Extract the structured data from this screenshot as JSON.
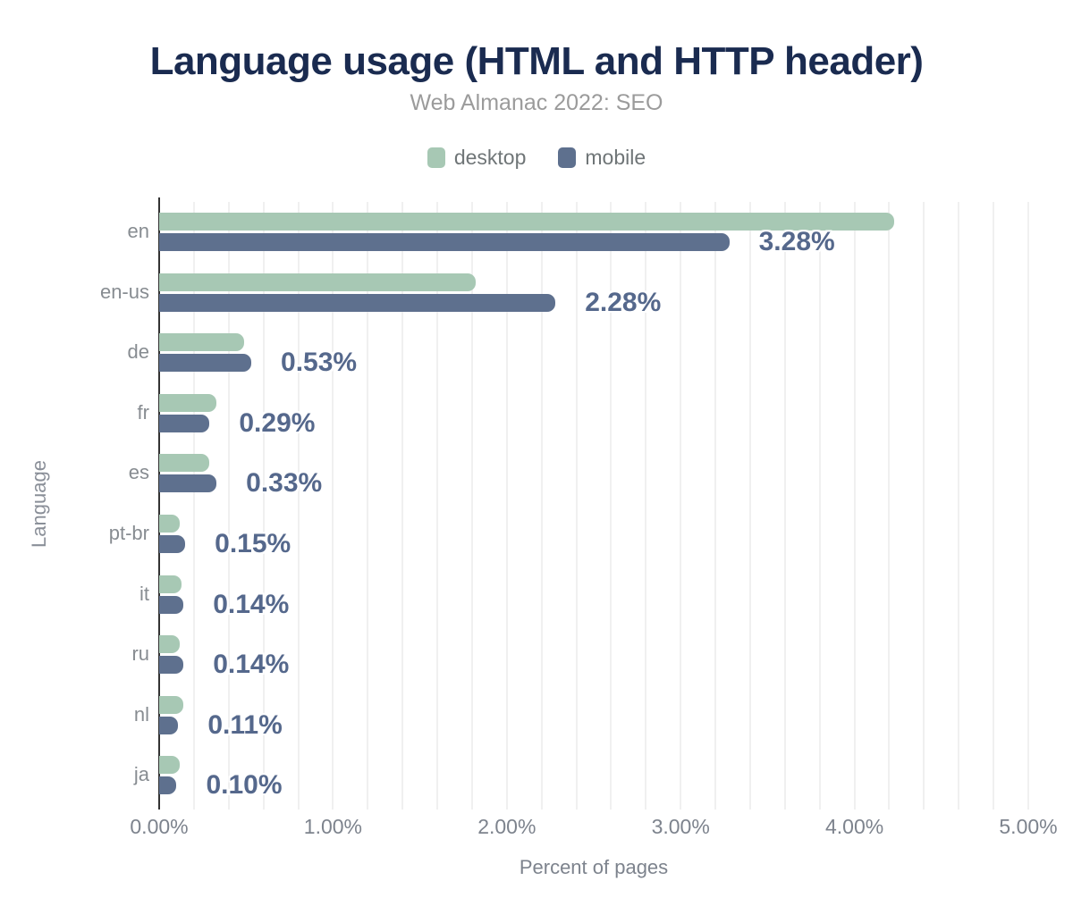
{
  "chart": {
    "title": "Language usage (HTML and HTTP header)",
    "subtitle": "Web Almanac 2022: SEO",
    "xlabel": "Percent of pages",
    "ylabel": "Language"
  },
  "colors": {
    "title": "#1a2b50",
    "subtitle": "#9b9b9b",
    "desktop": "#a7c8b4",
    "mobile": "#5e708e",
    "value_label": "#55688c",
    "gridline": "#f0f0f0",
    "axis_line": "#333333",
    "tick_label": "#7d838d"
  },
  "legend": {
    "position": "top",
    "items": [
      {
        "label": "desktop",
        "color": "#a7c8b4"
      },
      {
        "label": "mobile",
        "color": "#5e708e"
      }
    ]
  },
  "chart_data": {
    "type": "bar",
    "orientation": "horizontal",
    "title": "Language usage (HTML and HTTP header)",
    "subtitle": "Web Almanac 2022: SEO",
    "xlabel": "Percent of pages",
    "ylabel": "Language",
    "categories": [
      "en",
      "en-us",
      "de",
      "fr",
      "es",
      "pt-br",
      "it",
      "ru",
      "nl",
      "ja"
    ],
    "series": [
      {
        "name": "desktop",
        "color": "#a7c8b4",
        "values": [
          4.23,
          1.82,
          0.49,
          0.33,
          0.29,
          0.12,
          0.13,
          0.12,
          0.14,
          0.12
        ]
      },
      {
        "name": "mobile",
        "color": "#5e708e",
        "values": [
          3.28,
          2.28,
          0.53,
          0.29,
          0.33,
          0.15,
          0.14,
          0.14,
          0.11,
          0.1
        ]
      }
    ],
    "bar_labels": [
      "3.28%",
      "2.28%",
      "0.53%",
      "0.29%",
      "0.33%",
      "0.15%",
      "0.14%",
      "0.14%",
      "0.11%",
      "0.10%"
    ],
    "bar_labels_series": "mobile",
    "xlim": [
      0,
      5
    ],
    "x_ticks": [
      "0.00%",
      "1.00%",
      "2.00%",
      "3.00%",
      "4.00%",
      "5.00%"
    ],
    "x_tick_values": [
      0,
      1,
      2,
      3,
      4,
      5
    ],
    "gridline_step": 0.2,
    "grid": true,
    "legend_position": "top"
  }
}
